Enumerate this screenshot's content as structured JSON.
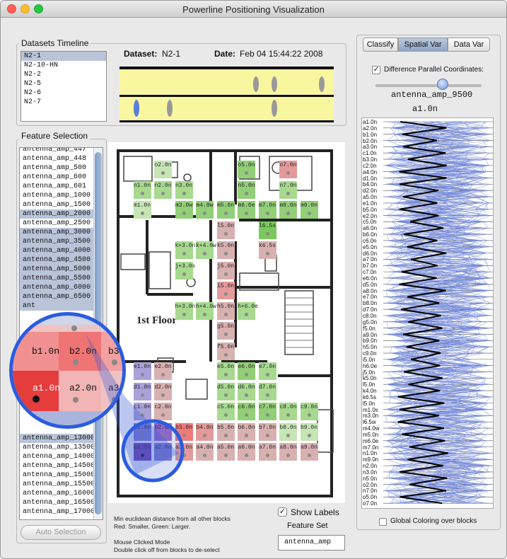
{
  "window": {
    "title": "Powerline Positioning Visualization",
    "controls": {
      "close": "#fe5f57",
      "minimize": "#febc2e",
      "zoom": "#28c840"
    }
  },
  "timeline": {
    "label": "Datasets Timeline",
    "datasets": [
      "N2-1",
      "N2-10-HN",
      "N2-2",
      "N2-5",
      "N2-6",
      "N2-7"
    ],
    "selected_index": 0,
    "dataset_label": "Dataset:",
    "dataset_value": "N2-1",
    "date_label": "Date:",
    "date_value": "Feb 04 15:44:22 2008"
  },
  "features": {
    "label": "Feature Selection",
    "items_top": [
      {
        "t": "antenna_amp_447",
        "s": false
      },
      {
        "t": "antenna_amp_448",
        "s": false
      },
      {
        "t": "antenna_amp_500",
        "s": false
      },
      {
        "t": "antenna_amp_600",
        "s": false
      },
      {
        "t": "antenna_amp_601",
        "s": false
      },
      {
        "t": "antenna_amp_1000",
        "s": false
      },
      {
        "t": "antenna_amp_1500",
        "s": false
      },
      {
        "t": "antenna_amp_2000",
        "s": true
      },
      {
        "t": "antenna_amp_2500",
        "s": false
      },
      {
        "t": "antenna_amp_3000",
        "s": true
      },
      {
        "t": "antenna_amp_3500",
        "s": true
      },
      {
        "t": "antenna_amp_4000",
        "s": true
      },
      {
        "t": "antenna_amp_4500",
        "s": true
      },
      {
        "t": "antenna_amp_5000",
        "s": true
      },
      {
        "t": "antenna_amp_5500",
        "s": true
      },
      {
        "t": "antenna_amp_6000",
        "s": true
      },
      {
        "t": "antenna_amp_6500",
        "s": true
      },
      {
        "t": "ant",
        "s": true
      }
    ],
    "items_bottom": [
      {
        "t": "antenna_amp_13000",
        "s": true
      },
      {
        "t": "antenna_amp_13500",
        "s": false
      },
      {
        "t": "antenna_amp_14000",
        "s": false
      },
      {
        "t": "antenna_amp_14500",
        "s": false
      },
      {
        "t": "antenna_amp_15000",
        "s": false
      },
      {
        "t": "antenna_amp_15500",
        "s": false
      },
      {
        "t": "antenna_amp_16000",
        "s": false
      },
      {
        "t": "antenna_amp_16500",
        "s": false
      },
      {
        "t": "antenna_amp_17000",
        "s": false
      }
    ],
    "auto_button": "Auto Selection"
  },
  "map": {
    "floor_label": "1st Floor",
    "note_lines": [
      "Min euclidean distance from all other blocks",
      "Red: Smaller, Green: Larger.",
      "",
      "Mouse Clicked Mode",
      "Double click off from blocks to de-select"
    ],
    "show_labels_label": "Show Labels",
    "show_labels_checked": true,
    "feature_set_label": "Feature Set",
    "feature_set_value": "antenna_amp",
    "magnifier": [
      "b1.0n",
      "b2.0n",
      "b3.",
      "a1.0n",
      "a2.0n",
      "a3."
    ],
    "cells": [
      {
        "n": "o5.0n",
        "r": 0,
        "c": 6,
        "k": "g3"
      },
      {
        "n": "o7.0n",
        "r": 0,
        "c": 8,
        "k": "r2"
      },
      {
        "n": "o2.0n",
        "r": 0,
        "c": 2,
        "k": "g1"
      },
      {
        "n": "n1.0n",
        "r": 1,
        "c": 1,
        "k": "g2"
      },
      {
        "n": "n2.0n",
        "r": 1,
        "c": 2,
        "k": "g2"
      },
      {
        "n": "n3.0n",
        "r": 1,
        "c": 3,
        "k": "g2"
      },
      {
        "n": "n5.0n",
        "r": 1,
        "c": 6,
        "k": "g3"
      },
      {
        "n": "n7.0n",
        "r": 1,
        "c": 8,
        "k": "g2"
      },
      {
        "n": "m1.0n",
        "r": 2,
        "c": 1,
        "k": "g1"
      },
      {
        "n": "m3.0w",
        "r": 2,
        "c": 3,
        "k": "g3"
      },
      {
        "n": "m4.0w",
        "r": 2,
        "c": 4,
        "k": "g3"
      },
      {
        "n": "m5.0n",
        "r": 2,
        "c": 5,
        "k": "g3"
      },
      {
        "n": "m6.0e",
        "r": 2,
        "c": 6,
        "k": "g3"
      },
      {
        "n": "m7.0n",
        "r": 2,
        "c": 7,
        "k": "g3"
      },
      {
        "n": "m8.0n",
        "r": 2,
        "c": 8,
        "k": "g3"
      },
      {
        "n": "m9.0n",
        "r": 2,
        "c": 9,
        "k": "g3"
      },
      {
        "n": "l5.0n",
        "r": 3,
        "c": 5,
        "k": "r1"
      },
      {
        "n": "l6.5s",
        "r": 3,
        "c": 7,
        "k": "g4"
      },
      {
        "n": "k+3.0n",
        "r": 4,
        "c": 3,
        "k": "g2"
      },
      {
        "n": "k+4.0w",
        "r": 4,
        "c": 4,
        "k": "g2"
      },
      {
        "n": "k5.0n",
        "r": 4,
        "c": 5,
        "k": "r1"
      },
      {
        "n": "k6.5s",
        "r": 4,
        "c": 7,
        "k": "r1"
      },
      {
        "n": "j+3.0s",
        "r": 5,
        "c": 3,
        "k": "g2"
      },
      {
        "n": "j5.0n",
        "r": 5,
        "c": 5,
        "k": "r1"
      },
      {
        "n": "i5.0n",
        "r": 6,
        "c": 5,
        "k": "r2"
      },
      {
        "n": "h+3.0n",
        "r": 7,
        "c": 3,
        "k": "g2"
      },
      {
        "n": "h+4.0w",
        "r": 7,
        "c": 4,
        "k": "g2"
      },
      {
        "n": "h5.0n",
        "r": 7,
        "c": 5,
        "k": "r1"
      },
      {
        "n": "h+6.0e",
        "r": 7,
        "c": 6,
        "k": "g2"
      },
      {
        "n": "g5.0n",
        "r": 8,
        "c": 5,
        "k": "r1"
      },
      {
        "n": "f5.0n",
        "r": 9,
        "c": 5,
        "k": "r1"
      },
      {
        "n": "e1.0n",
        "r": 10,
        "c": 1,
        "k": "p1"
      },
      {
        "n": "e2.0n",
        "r": 10,
        "c": 2,
        "k": "r1"
      },
      {
        "n": "e5.0n",
        "r": 10,
        "c": 5,
        "k": "g2"
      },
      {
        "n": "e6.0n",
        "r": 10,
        "c": 6,
        "k": "g3"
      },
      {
        "n": "e7.0n",
        "r": 10,
        "c": 7,
        "k": "g2"
      },
      {
        "n": "d1.0n",
        "r": 11,
        "c": 1,
        "k": "p1"
      },
      {
        "n": "d2.0n",
        "r": 11,
        "c": 2,
        "k": "r1"
      },
      {
        "n": "d5.0n",
        "r": 11,
        "c": 5,
        "k": "g2"
      },
      {
        "n": "d6.0n",
        "r": 11,
        "c": 6,
        "k": "g2"
      },
      {
        "n": "d7.0n",
        "r": 11,
        "c": 7,
        "k": "g2"
      },
      {
        "n": "c1.0n",
        "r": 12,
        "c": 1,
        "k": "p1"
      },
      {
        "n": "c2.0n",
        "r": 12,
        "c": 2,
        "k": "r1"
      },
      {
        "n": "c5.0n",
        "r": 12,
        "c": 5,
        "k": "g2"
      },
      {
        "n": "c6.0n",
        "r": 12,
        "c": 6,
        "k": "g3"
      },
      {
        "n": "c7.0n",
        "r": 12,
        "c": 7,
        "k": "g3"
      },
      {
        "n": "c8.0n",
        "r": 12,
        "c": 8,
        "k": "g2"
      },
      {
        "n": "c9.0n",
        "r": 12,
        "c": 9,
        "k": "g2"
      },
      {
        "n": "b1.0n",
        "r": 13,
        "c": 1,
        "k": "p2"
      },
      {
        "n": "b2.0n",
        "r": 13,
        "c": 2,
        "k": "p3"
      },
      {
        "n": "b3.0n",
        "r": 13,
        "c": 3,
        "k": "r3"
      },
      {
        "n": "b4.0n",
        "r": 13,
        "c": 4,
        "k": "r2"
      },
      {
        "n": "b5.0n",
        "r": 13,
        "c": 5,
        "k": "r1"
      },
      {
        "n": "b6.0n",
        "r": 13,
        "c": 6,
        "k": "r1"
      },
      {
        "n": "b7.0n",
        "r": 13,
        "c": 7,
        "k": "r1"
      },
      {
        "n": "b8.0n",
        "r": 13,
        "c": 8,
        "k": "g1"
      },
      {
        "n": "b9.0n",
        "r": 13,
        "c": 9,
        "k": "g1"
      },
      {
        "n": "a1.0n",
        "r": 14,
        "c": 1,
        "k": "p4"
      },
      {
        "n": "a2.0n",
        "r": 14,
        "c": 2,
        "k": "p2"
      },
      {
        "n": "a3.0n",
        "r": 14,
        "c": 3,
        "k": "r2"
      },
      {
        "n": "a4.0n",
        "r": 14,
        "c": 4,
        "k": "r1"
      },
      {
        "n": "a5.0n",
        "r": 14,
        "c": 5,
        "k": "r1"
      },
      {
        "n": "a6.0n",
        "r": 14,
        "c": 6,
        "k": "r1"
      },
      {
        "n": "a7.0n",
        "r": 14,
        "c": 7,
        "k": "r1"
      },
      {
        "n": "a8.0n",
        "r": 14,
        "c": 8,
        "k": "r1"
      },
      {
        "n": "a9.0n",
        "r": 14,
        "c": 9,
        "k": "r1"
      }
    ],
    "palette": {
      "g1": "#c6e5b4",
      "g2": "#a7d98f",
      "g3": "#92cf77",
      "g4": "#7bc95c",
      "r1": "#d9b0b0",
      "r2": "#e49a9a",
      "r3": "#ef7a7a",
      "p1": "#a9a1d8",
      "p2": "#8a7ed3",
      "p3": "#a268c8",
      "p4": "#7a3ea8"
    }
  },
  "right": {
    "tabs": [
      {
        "label": "Classify",
        "active": false
      },
      {
        "label": "Spatial Var",
        "active": true
      },
      {
        "label": "Data Var",
        "active": false
      }
    ],
    "diff_pc_label": "Difference Parallel Coordinates:",
    "diff_pc_checked": true,
    "slider_label": "antenna_amp_9500",
    "slider_value_fraction": 0.63,
    "selected_block": "a1.0n",
    "axis_labels": [
      "a1.0n",
      "a2.0n",
      "b1.0n",
      "b2.0n",
      "a3.0n",
      "c1.0n",
      "b3.0n",
      "c2.0n",
      "a4.0n",
      "d1.0n",
      "b4.0n",
      "d2.0n",
      "a5.0n",
      "e1.0n",
      "b5.0n",
      "e2.0n",
      "c5.0n",
      "a6.0n",
      "b6.0n",
      "c6.0n",
      "e5.0n",
      "d6.0n",
      "a7.0n",
      "b7.0n",
      "c7.0n",
      "e6.0n",
      "d5.0n",
      "a8.0n",
      "e7.0n",
      "b8.0n",
      "d7.0n",
      "c8.0n",
      "g5.0n",
      "f5.0n",
      "a9.0n",
      "b9.0n",
      "h5.0n",
      "c9.0n",
      "i5.0n",
      "h6.0e",
      "j5.0n",
      "k5.0n",
      "l5.0n",
      "k4.0n",
      "k6.5s",
      "l5.0n",
      "m1.0s",
      "m3.0n",
      "l6.5w",
      "m4.0w",
      "m5.0n",
      "m6.0e",
      "m7.0n",
      "n1.0n",
      "m9.0n",
      "n2.0n",
      "n3.0n",
      "n5.0n",
      "o2.0n",
      "n7.0n",
      "o5.0n",
      "o7.0n"
    ],
    "global_coloring_label": "Global Coloring over blocks",
    "global_coloring_checked": false
  }
}
